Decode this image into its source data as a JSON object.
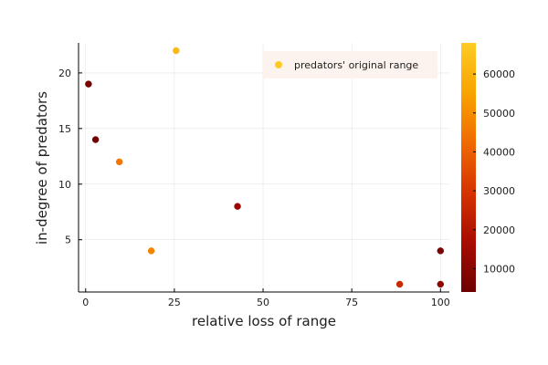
{
  "chart_data": {
    "type": "scatter",
    "title": "",
    "xlabel": "relative loss of range",
    "ylabel": "in-degree of predators",
    "xlim": [
      -2,
      102.5
    ],
    "ylim": [
      0.3,
      22.7
    ],
    "x_ticks": [
      0,
      25,
      50,
      75,
      100
    ],
    "y_ticks": [
      5,
      10,
      15,
      20
    ],
    "grid": true,
    "legend": {
      "label": "predators' original range",
      "placement": "top-right"
    },
    "colorbar": {
      "min": 4000,
      "max": 68000,
      "ticks": [
        10000,
        20000,
        30000,
        40000,
        50000,
        60000
      ],
      "colormap": [
        "#6e0000",
        "#a80b00",
        "#d63300",
        "#f06a00",
        "#f8a400",
        "#fecb25"
      ]
    },
    "series": [
      {
        "name": "predators' original range",
        "points": [
          {
            "x": 0.8,
            "y": 19,
            "c": 6000
          },
          {
            "x": 2.8,
            "y": 14,
            "c": 5000
          },
          {
            "x": 9.5,
            "y": 12,
            "c": 45000
          },
          {
            "x": 18.5,
            "y": 4,
            "c": 48000
          },
          {
            "x": 25.5,
            "y": 22,
            "c": 62000
          },
          {
            "x": 42.8,
            "y": 8,
            "c": 14000
          },
          {
            "x": 88.5,
            "y": 1,
            "c": 26000
          },
          {
            "x": 100,
            "y": 4,
            "c": 7000
          },
          {
            "x": 100,
            "y": 1,
            "c": 12000
          }
        ]
      }
    ]
  }
}
